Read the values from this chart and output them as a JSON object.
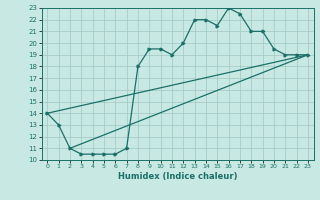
{
  "title": "",
  "xlabel": "Humidex (Indice chaleur)",
  "ylabel": "",
  "xlim": [
    -0.5,
    23.5
  ],
  "ylim": [
    10,
    23
  ],
  "xticks": [
    0,
    1,
    2,
    3,
    4,
    5,
    6,
    7,
    8,
    9,
    10,
    11,
    12,
    13,
    14,
    15,
    16,
    17,
    18,
    19,
    20,
    21,
    22,
    23
  ],
  "yticks": [
    10,
    11,
    12,
    13,
    14,
    15,
    16,
    17,
    18,
    19,
    20,
    21,
    22,
    23
  ],
  "bg_color": "#c8e8e4",
  "grid_color": "#a0c8c4",
  "line_color": "#1a7068",
  "line1_x": [
    0,
    1,
    2,
    3,
    4,
    5,
    6,
    7,
    8,
    9,
    10,
    11,
    12,
    13,
    14,
    15,
    16,
    17,
    18,
    19,
    20,
    21,
    22,
    23
  ],
  "line1_y": [
    14,
    13,
    11,
    10.5,
    10.5,
    10.5,
    10.5,
    11,
    18,
    19.5,
    19.5,
    19,
    20,
    22,
    22,
    21.5,
    23,
    22.5,
    21,
    21,
    19.5,
    19,
    19,
    19
  ],
  "line2_x": [
    0,
    23
  ],
  "line2_y": [
    14,
    19
  ],
  "line3_x": [
    2,
    23
  ],
  "line3_y": [
    11,
    19
  ]
}
